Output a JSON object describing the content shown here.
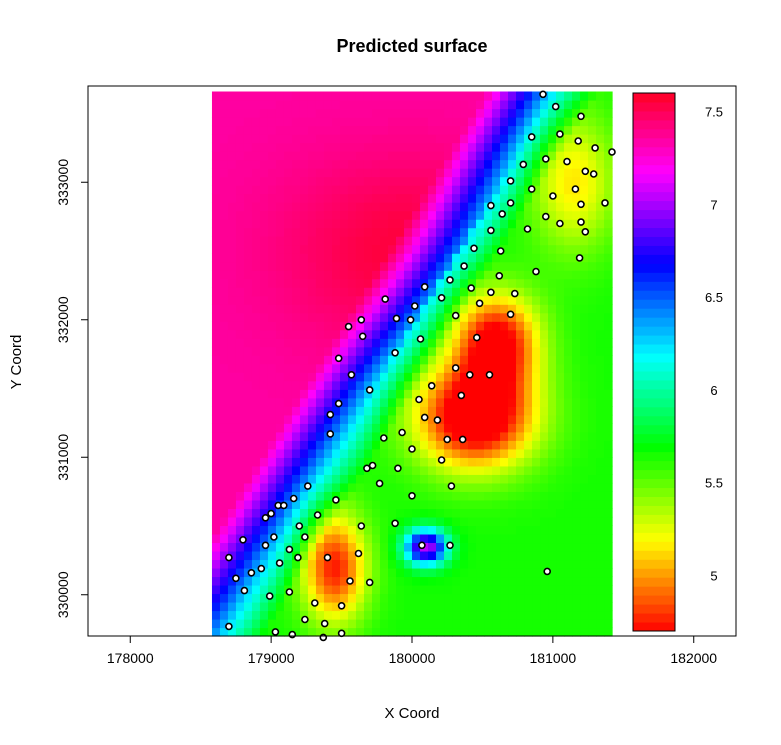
{
  "chart_data": {
    "type": "heatmap",
    "title": "Predicted surface",
    "xlabel": "X Coord",
    "ylabel": "Y Coord",
    "xlim": [
      177700,
      182300
    ],
    "ylim": [
      329700,
      333700
    ],
    "grid_extent": {
      "x": [
        178580,
        181420
      ],
      "y": [
        329700,
        333660
      ]
    },
    "x_ticks": [
      178000,
      179000,
      180000,
      181000,
      182000
    ],
    "x_tick_labels": [
      "178000",
      "179000",
      "180000",
      "181000",
      "182000"
    ],
    "y_ticks": [
      330000,
      331000,
      332000,
      333000
    ],
    "y_tick_labels": [
      "330000",
      "331000",
      "332000",
      "333000"
    ],
    "color_scale": {
      "range": [
        4.7,
        7.6
      ],
      "ticks": [
        5,
        5.5,
        6,
        6.5,
        7,
        7.5
      ],
      "tick_labels": [
        "5",
        "5.5",
        "6",
        "6.5",
        "7",
        "7.5"
      ],
      "palette": "rainbow (red-yellow-green-cyan-blue-magenta)"
    },
    "surface_features": [
      {
        "kind": "high",
        "x": 179950,
        "y": 332500,
        "value": 7.5
      },
      {
        "kind": "low",
        "x": 180350,
        "y": 331150,
        "value": 4.9
      },
      {
        "kind": "low",
        "x": 180550,
        "y": 331800,
        "value": 5.0
      },
      {
        "kind": "low",
        "x": 179450,
        "y": 330200,
        "value": 5.0
      },
      {
        "kind": "local_high",
        "x": 180100,
        "y": 330350,
        "value": 6.7
      }
    ],
    "points": [
      [
        180930,
        333640
      ],
      [
        181020,
        333550
      ],
      [
        181200,
        333480
      ],
      [
        181050,
        333350
      ],
      [
        181180,
        333300
      ],
      [
        181300,
        333250
      ],
      [
        181420,
        333220
      ],
      [
        180850,
        333330
      ],
      [
        180950,
        333170
      ],
      [
        181100,
        333150
      ],
      [
        181230,
        333080
      ],
      [
        181290,
        333060
      ],
      [
        180790,
        333130
      ],
      [
        180700,
        333010
      ],
      [
        181160,
        332950
      ],
      [
        180850,
        332950
      ],
      [
        180700,
        332850
      ],
      [
        181000,
        332900
      ],
      [
        181370,
        332850
      ],
      [
        181200,
        332840
      ],
      [
        180560,
        332830
      ],
      [
        180640,
        332770
      ],
      [
        180950,
        332750
      ],
      [
        181050,
        332700
      ],
      [
        181200,
        332710
      ],
      [
        181230,
        332640
      ],
      [
        180820,
        332660
      ],
      [
        180560,
        332650
      ],
      [
        180440,
        332520
      ],
      [
        180630,
        332500
      ],
      [
        181190,
        332450
      ],
      [
        180370,
        332390
      ],
      [
        180880,
        332350
      ],
      [
        180270,
        332290
      ],
      [
        180620,
        332320
      ],
      [
        180090,
        332240
      ],
      [
        180210,
        332160
      ],
      [
        179810,
        332150
      ],
      [
        180020,
        332100
      ],
      [
        180420,
        332230
      ],
      [
        179990,
        332000
      ],
      [
        179890,
        332010
      ],
      [
        179640,
        332000
      ],
      [
        180560,
        332200
      ],
      [
        180730,
        332190
      ],
      [
        180700,
        332040
      ],
      [
        180480,
        332120
      ],
      [
        180310,
        332030
      ],
      [
        179550,
        331950
      ],
      [
        179650,
        331880
      ],
      [
        180460,
        331870
      ],
      [
        180060,
        331860
      ],
      [
        179880,
        331760
      ],
      [
        179480,
        331720
      ],
      [
        180410,
        331600
      ],
      [
        180550,
        331600
      ],
      [
        180310,
        331650
      ],
      [
        179570,
        331600
      ],
      [
        180350,
        331450
      ],
      [
        179480,
        331390
      ],
      [
        180050,
        331420
      ],
      [
        180140,
        331520
      ],
      [
        179700,
        331490
      ],
      [
        179420,
        331310
      ],
      [
        180180,
        331270
      ],
      [
        180090,
        331290
      ],
      [
        180250,
        331130
      ],
      [
        180360,
        331130
      ],
      [
        179800,
        331140
      ],
      [
        179930,
        331180
      ],
      [
        179420,
        331170
      ],
      [
        180000,
        331060
      ],
      [
        179720,
        330940
      ],
      [
        179680,
        330920
      ],
      [
        179900,
        330920
      ],
      [
        180210,
        330980
      ],
      [
        179770,
        330810
      ],
      [
        180280,
        330790
      ],
      [
        180000,
        330720
      ],
      [
        179260,
        330790
      ],
      [
        179460,
        330690
      ],
      [
        179050,
        330650
      ],
      [
        179090,
        330650
      ],
      [
        179160,
        330700
      ],
      [
        179000,
        330590
      ],
      [
        178960,
        330560
      ],
      [
        179200,
        330500
      ],
      [
        179330,
        330580
      ],
      [
        179640,
        330500
      ],
      [
        178800,
        330400
      ],
      [
        178960,
        330360
      ],
      [
        179130,
        330330
      ],
      [
        179240,
        330420
      ],
      [
        179020,
        330420
      ],
      [
        178700,
        330270
      ],
      [
        179060,
        330230
      ],
      [
        179190,
        330270
      ],
      [
        178860,
        330160
      ],
      [
        179400,
        330270
      ],
      [
        179620,
        330300
      ],
      [
        178810,
        330030
      ],
      [
        179130,
        330020
      ],
      [
        178990,
        329990
      ],
      [
        179560,
        330100
      ],
      [
        179700,
        330090
      ],
      [
        179310,
        329940
      ],
      [
        179500,
        329920
      ],
      [
        179240,
        329820
      ],
      [
        179380,
        329790
      ],
      [
        178700,
        329770
      ],
      [
        179030,
        329730
      ],
      [
        179150,
        329710
      ],
      [
        179370,
        329690
      ],
      [
        179500,
        329720
      ],
      [
        180070,
        330360
      ],
      [
        180270,
        330360
      ],
      [
        180960,
        330170
      ],
      [
        179880,
        330520
      ],
      [
        178750,
        330120
      ],
      [
        178930,
        330190
      ]
    ]
  }
}
